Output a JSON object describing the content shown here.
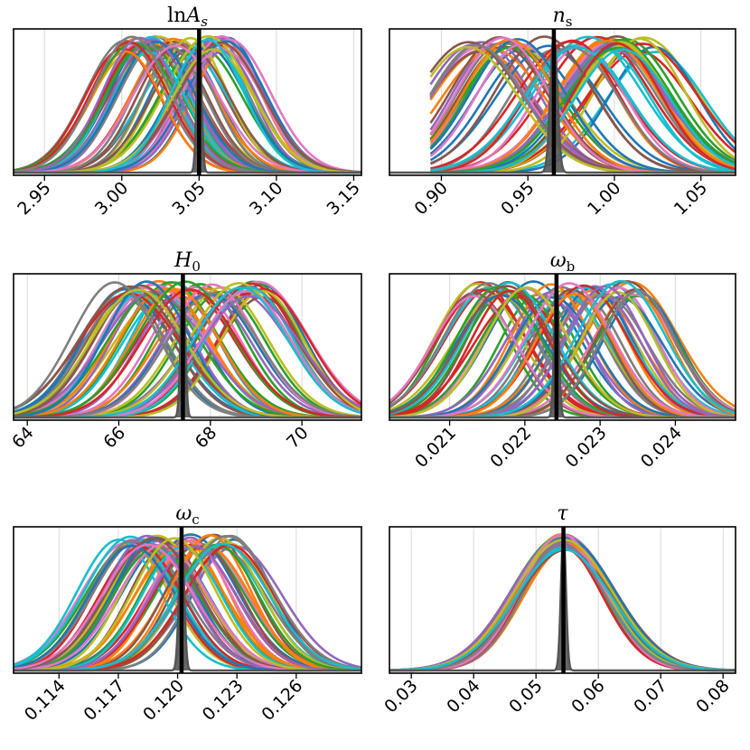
{
  "chart_data": [
    {
      "type": "line",
      "title": "lnA_s",
      "title_main": "ln",
      "title_var": "A",
      "title_sub": "s",
      "xlabel": "",
      "ylabel": "",
      "xlim": [
        2.93,
        3.155
      ],
      "ticks": [
        2.95,
        3.0,
        3.05,
        3.1,
        3.15
      ],
      "tick_labels": [
        "2.95",
        "3.00",
        "3.05",
        "3.10",
        "3.15"
      ],
      "grid": true,
      "fiducial": 3.05,
      "family": {
        "count": 60,
        "mean_min": 3.0,
        "mean_max": 3.07,
        "sigma": 0.025
      },
      "narrow_peak": {
        "mean": 3.05,
        "sigma": 0.0015
      },
      "series_colors": [
        "#1f77b4",
        "#ff7f0e",
        "#2ca02c",
        "#d62728",
        "#9467bd",
        "#8c564b",
        "#e377c2",
        "#7f7f7f",
        "#bcbd22",
        "#17becf"
      ]
    },
    {
      "type": "line",
      "title": "n_s",
      "title_main": "",
      "title_var": "n",
      "title_sub": "s",
      "xlabel": "",
      "ylabel": "",
      "xlim": [
        0.87,
        1.07
      ],
      "ticks": [
        0.9,
        0.95,
        1.0,
        1.05
      ],
      "tick_labels": [
        "0.90",
        "0.95",
        "1.00",
        "1.05"
      ],
      "grid": true,
      "fiducial": 0.965,
      "family": {
        "count": 60,
        "mean_min": 0.915,
        "mean_max": 1.025,
        "sigma": 0.028
      },
      "truncate_low": 0.893,
      "narrow_peak": {
        "mean": 0.965,
        "sigma": 0.002
      },
      "series_colors": [
        "#1f77b4",
        "#ff7f0e",
        "#2ca02c",
        "#d62728",
        "#9467bd",
        "#8c564b",
        "#e377c2",
        "#7f7f7f",
        "#bcbd22",
        "#17becf"
      ]
    },
    {
      "type": "line",
      "title": "H_0",
      "title_main": "",
      "title_var": "H",
      "title_sub": "0",
      "xlabel": "",
      "ylabel": "",
      "xlim": [
        63.7,
        71.3
      ],
      "ticks": [
        64,
        66,
        68,
        70
      ],
      "tick_labels": [
        "64",
        "66",
        "68",
        "70"
      ],
      "grid": true,
      "fiducial": 67.4,
      "family": {
        "count": 60,
        "mean_min": 65.9,
        "mean_max": 69.2,
        "sigma": 1.0
      },
      "narrow_peak": {
        "mean": 67.4,
        "sigma": 0.05
      },
      "series_colors": [
        "#1f77b4",
        "#ff7f0e",
        "#2ca02c",
        "#d62728",
        "#9467bd",
        "#8c564b",
        "#e377c2",
        "#7f7f7f",
        "#bcbd22",
        "#17becf"
      ]
    },
    {
      "type": "line",
      "title": "ω_b",
      "title_main": "",
      "title_var": "ω",
      "title_sub": "b",
      "xlabel": "",
      "ylabel": "",
      "xlim": [
        0.0202,
        0.0248
      ],
      "ticks": [
        0.021,
        0.022,
        0.023,
        0.024
      ],
      "tick_labels": [
        "0.021",
        "0.022",
        "0.023",
        "0.024"
      ],
      "grid": true,
      "fiducial": 0.02242,
      "family": {
        "count": 60,
        "mean_min": 0.0213,
        "mean_max": 0.0236,
        "sigma": 0.00055
      },
      "narrow_peak": {
        "mean": 0.02242,
        "sigma": 3e-05
      },
      "series_colors": [
        "#1f77b4",
        "#ff7f0e",
        "#2ca02c",
        "#d62728",
        "#9467bd",
        "#8c564b",
        "#e377c2",
        "#7f7f7f",
        "#bcbd22",
        "#17becf"
      ]
    },
    {
      "type": "line",
      "title": "ω_c",
      "title_main": "",
      "title_var": "ω",
      "title_sub": "c",
      "xlabel": "",
      "ylabel": "",
      "xlim": [
        0.1117,
        0.1293
      ],
      "ticks": [
        0.114,
        0.117,
        0.12,
        0.123,
        0.126
      ],
      "tick_labels": [
        "0.114",
        "0.117",
        "0.120",
        "0.123",
        "0.126"
      ],
      "grid": true,
      "fiducial": 0.1202,
      "family": {
        "count": 60,
        "mean_min": 0.117,
        "mean_max": 0.123,
        "sigma": 0.0021
      },
      "narrow_peak": {
        "mean": 0.1202,
        "sigma": 0.00013
      },
      "series_colors": [
        "#1f77b4",
        "#ff7f0e",
        "#2ca02c",
        "#d62728",
        "#9467bd",
        "#8c564b",
        "#e377c2",
        "#7f7f7f",
        "#bcbd22",
        "#17becf"
      ]
    },
    {
      "type": "line",
      "title": "τ",
      "title_main": "",
      "title_var": "τ",
      "title_sub": "",
      "xlabel": "",
      "ylabel": "",
      "xlim": [
        0.0265,
        0.082
      ],
      "ticks": [
        0.03,
        0.04,
        0.05,
        0.06,
        0.07,
        0.08
      ],
      "tick_labels": [
        "0.03",
        "0.04",
        "0.05",
        "0.06",
        "0.07",
        "0.08"
      ],
      "grid": true,
      "fiducial": 0.0544,
      "family": {
        "count": 40,
        "mean_min": 0.054,
        "mean_max": 0.0548,
        "sigma": 0.0072
      },
      "narrow_peak": {
        "mean": 0.0544,
        "sigma": 0.0004
      },
      "series_colors": [
        "#1f77b4",
        "#ff7f0e",
        "#2ca02c",
        "#d62728",
        "#9467bd",
        "#8c564b",
        "#e377c2",
        "#7f7f7f",
        "#bcbd22",
        "#17becf"
      ]
    }
  ]
}
